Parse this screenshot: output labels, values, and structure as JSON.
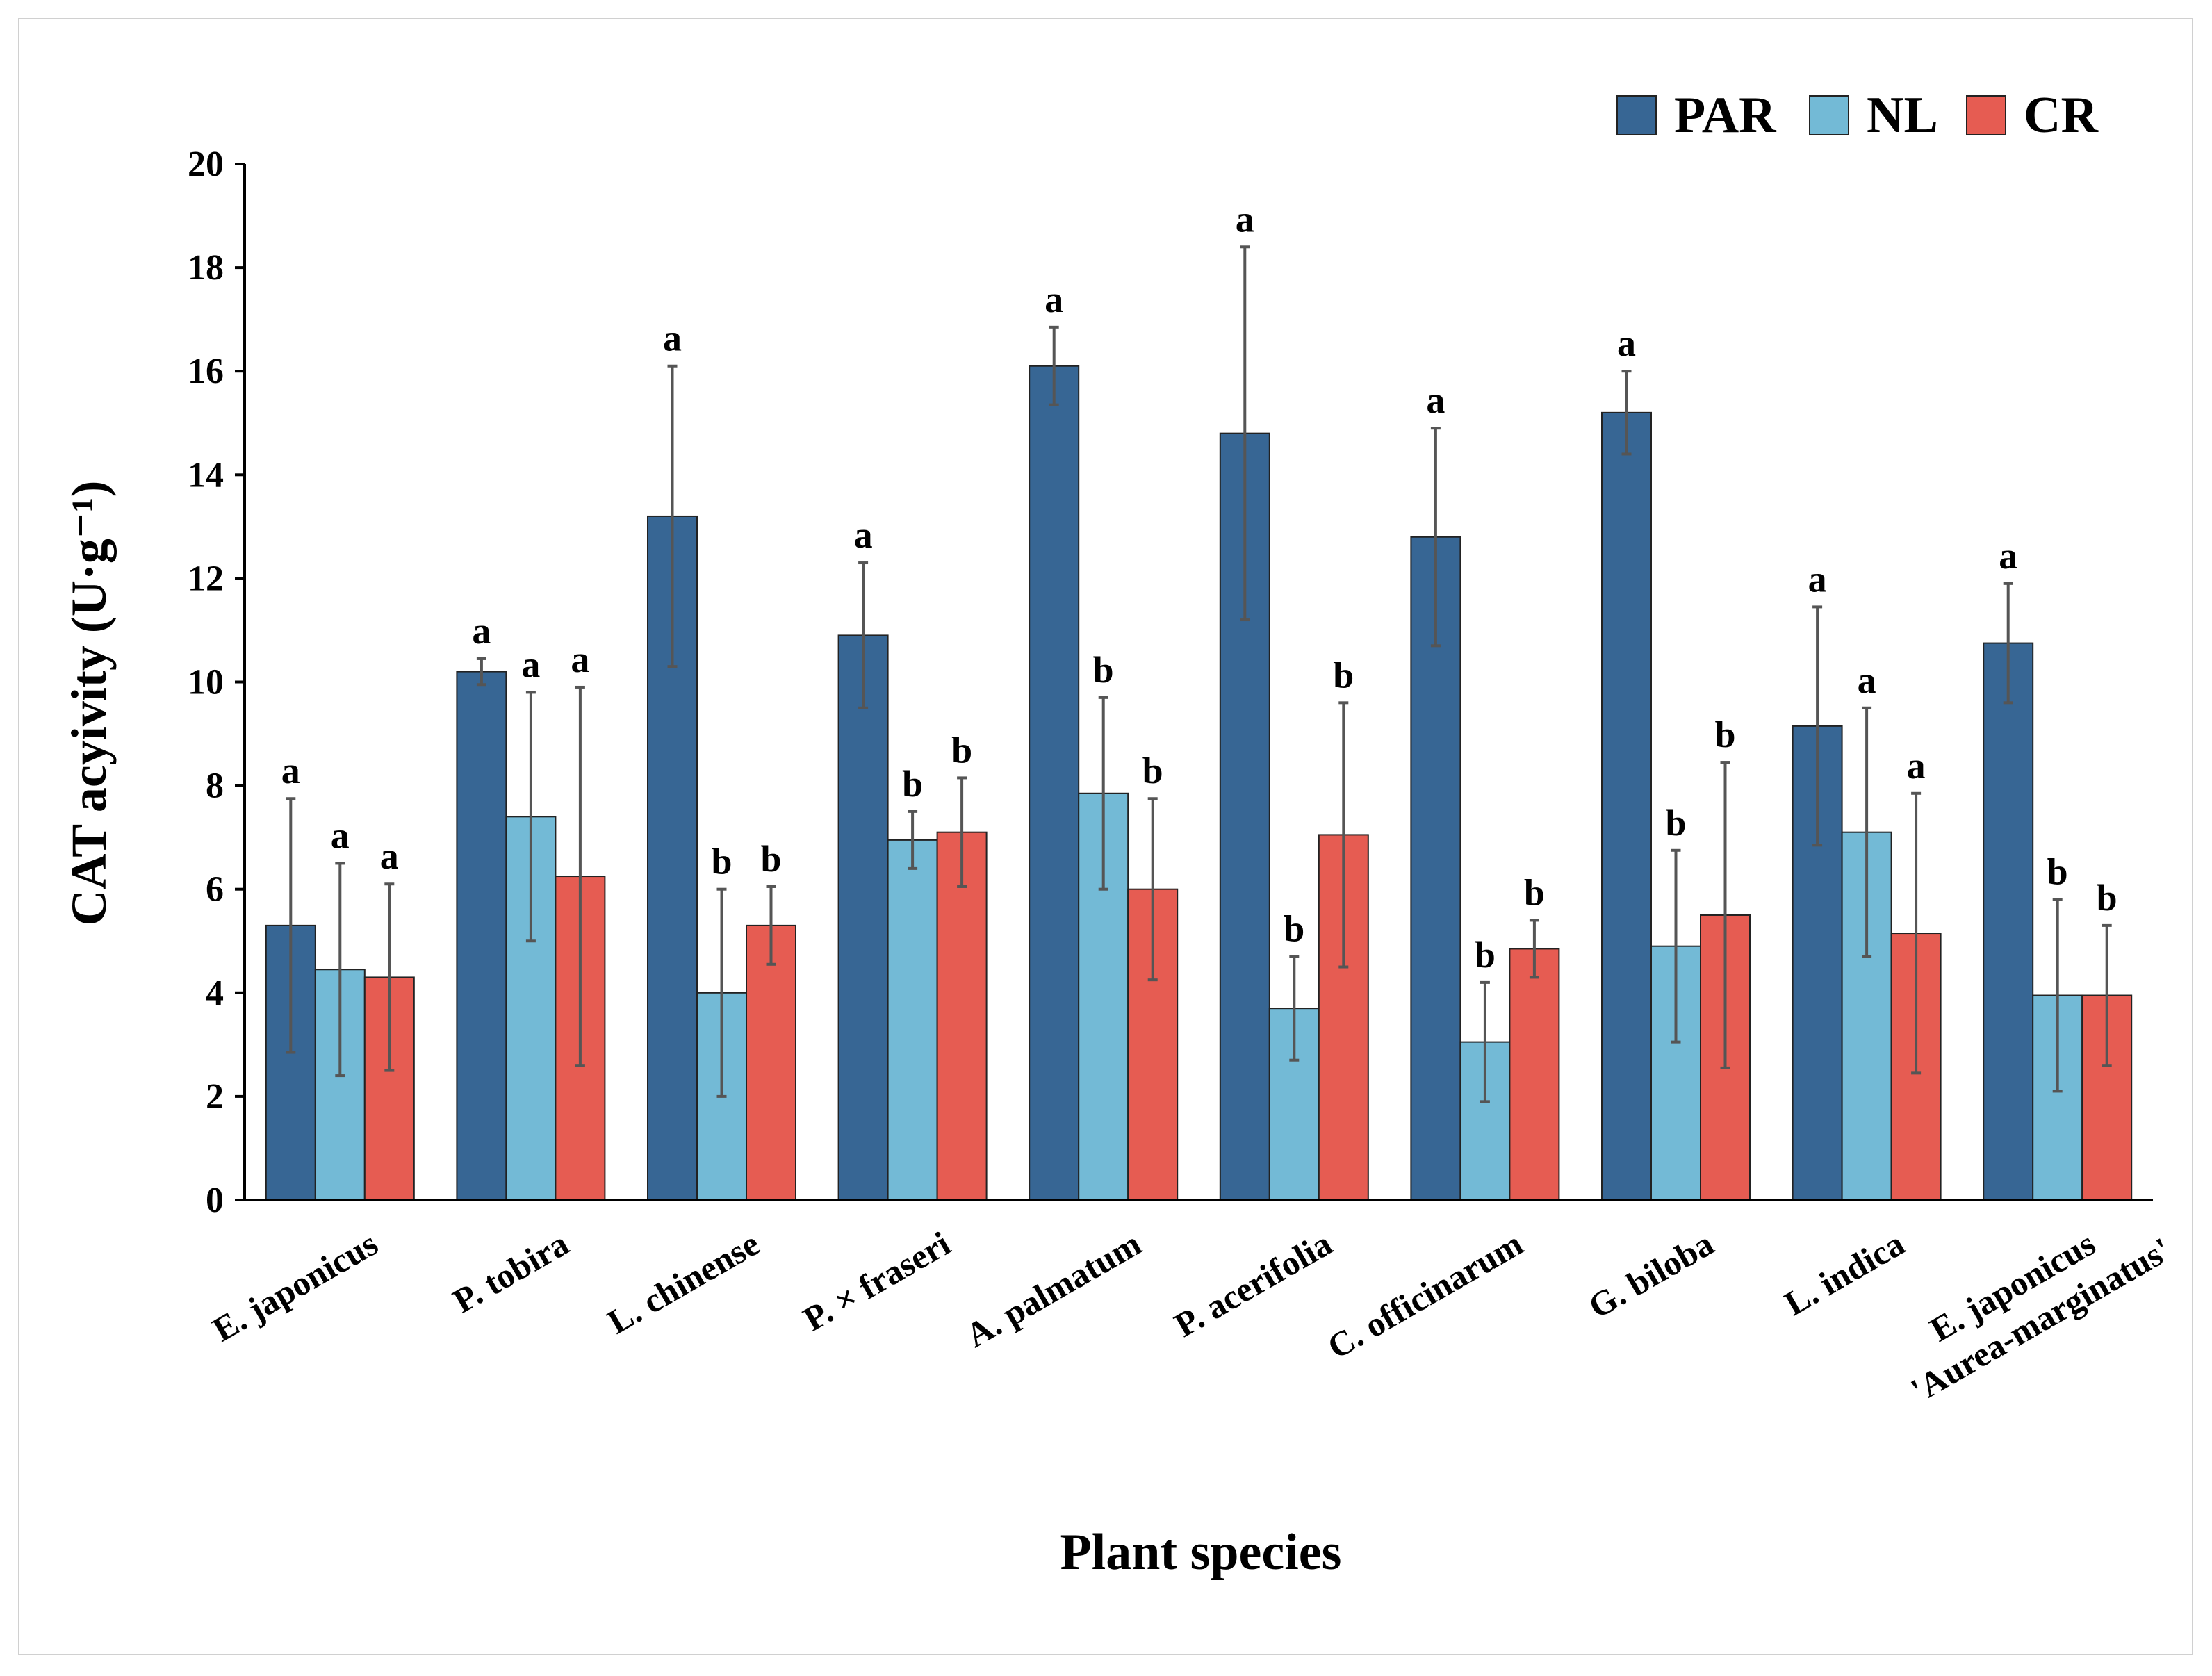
{
  "chart_data": {
    "type": "bar",
    "title": "",
    "xlabel": "Plant species",
    "ylabel": "CAT acyivity (U·g⁻¹)",
    "ylim": [
      0,
      20
    ],
    "yticks": [
      0,
      2,
      4,
      6,
      8,
      10,
      12,
      14,
      16,
      18,
      20
    ],
    "legend_position": "top-right",
    "categories": [
      "E. japonicus",
      "P. tobira",
      "L. chinense",
      "P. × fraseri",
      "A. palmatum",
      "P. acerifolia",
      "C. officinarum",
      "G. biloba",
      "L. indica",
      "E. japonicus\n'Aurea-marginatus'"
    ],
    "series": [
      {
        "name": "PAR",
        "color": "#376694",
        "values": [
          5.3,
          10.2,
          13.2,
          10.9,
          16.1,
          14.8,
          12.8,
          15.2,
          9.15,
          10.75
        ],
        "errors": [
          2.45,
          0.25,
          2.9,
          1.4,
          0.75,
          3.6,
          2.1,
          0.8,
          2.3,
          1.15
        ],
        "letters": [
          "a",
          "a",
          "a",
          "a",
          "a",
          "a",
          "a",
          "a",
          "a",
          "a"
        ]
      },
      {
        "name": "NL",
        "color": "#73bad6",
        "values": [
          4.45,
          7.4,
          4.0,
          6.95,
          7.85,
          3.7,
          3.05,
          4.9,
          7.1,
          3.95
        ],
        "errors": [
          2.05,
          2.4,
          2.0,
          0.55,
          1.85,
          1.0,
          1.15,
          1.85,
          2.4,
          1.85
        ],
        "letters": [
          "a",
          "a",
          "b",
          "b",
          "b",
          "b",
          "b",
          "b",
          "a",
          "b"
        ]
      },
      {
        "name": "CR",
        "color": "#e65c52",
        "values": [
          4.3,
          6.25,
          5.3,
          7.1,
          6.0,
          7.05,
          4.85,
          5.5,
          5.15,
          3.95
        ],
        "errors": [
          1.8,
          3.65,
          0.75,
          1.05,
          1.75,
          2.55,
          0.55,
          2.95,
          2.7,
          1.35
        ],
        "letters": [
          "a",
          "a",
          "b",
          "b",
          "b",
          "b",
          "b",
          "b",
          "a",
          "b"
        ]
      }
    ]
  }
}
